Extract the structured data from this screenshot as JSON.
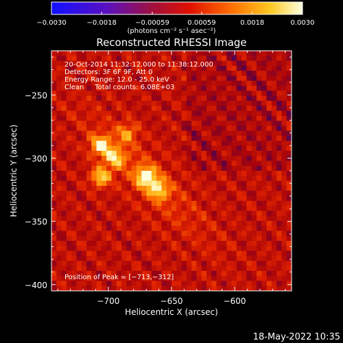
{
  "chart_data": {
    "type": "heatmap",
    "title": "Reconstructed RHESSI Image",
    "xlabel": "Heliocentric X (arcsec)",
    "ylabel": "Heliocentric Y (arcsec)",
    "xlim": [
      -745,
      -555
    ],
    "ylim": [
      -405,
      -215
    ],
    "x_ticks": [
      -700,
      -650,
      -600
    ],
    "x_tick_labels": [
      "−700",
      "−650",
      "−600"
    ],
    "y_ticks": [
      -250,
      -300,
      -350,
      -400
    ],
    "y_tick_labels": [
      "−250",
      "−300",
      "−350",
      "−400"
    ],
    "colorbar": {
      "range": [
        -0.003,
        0.003
      ],
      "ticks": [
        -0.003,
        -0.0018,
        -0.00059,
        0.00059,
        0.0018,
        0.003
      ],
      "tick_labels": [
        "−0.0030",
        "−0.0018",
        "−0.00059",
        "0.00059",
        "0.0018",
        "0.0030"
      ],
      "unit_label": "(photons cm⁻² s⁻¹ asec⁻²)",
      "colormap": "hot (blue→purple→red→orange→yellow→white)"
    },
    "annotations": [
      "20-Oct-2014 11:32:12.000 to 11:38:12.000",
      "Detectors: 3F 6F 9F, Att 0",
      "Energy Range: 12.0 - 25.0 keV",
      "Clean     Total counts: 6.08E+03"
    ],
    "peak_label": "Position of Peak = [−713,−312]",
    "peak_position": [
      -713,
      -312
    ],
    "sources": [
      {
        "x": -670,
        "y": -315,
        "relative_intensity": 1.0
      },
      {
        "x": -706,
        "y": -290,
        "relative_intensity": 0.9
      },
      {
        "x": -706,
        "y": -315,
        "relative_intensity": 0.85
      },
      {
        "x": -695,
        "y": -300,
        "relative_intensity": 0.75
      },
      {
        "x": -660,
        "y": -325,
        "relative_intensity": 0.7
      },
      {
        "x": -685,
        "y": -280,
        "relative_intensity": 0.55
      }
    ]
  },
  "footer": {
    "timestamp": "18-May-2022 10:35"
  },
  "colors": {
    "background": "#000000",
    "text": "#ffffff"
  }
}
